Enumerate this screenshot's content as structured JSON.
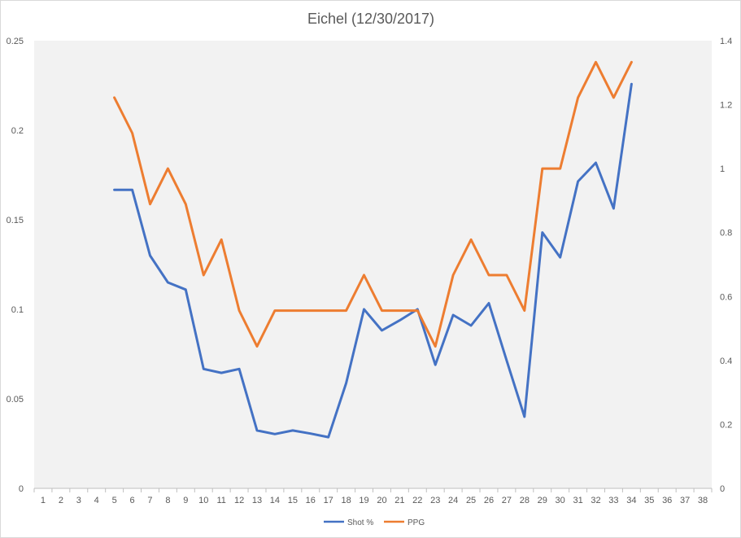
{
  "chart_data": {
    "type": "line",
    "title": "Eichel (12/30/2017)",
    "x": [
      1,
      2,
      3,
      4,
      5,
      6,
      7,
      8,
      9,
      10,
      11,
      12,
      13,
      14,
      15,
      16,
      17,
      18,
      19,
      20,
      21,
      22,
      23,
      24,
      25,
      26,
      27,
      28,
      29,
      30,
      31,
      32,
      33,
      34,
      35,
      36,
      37,
      38
    ],
    "xlim": [
      1,
      38
    ],
    "y_left": {
      "min": 0,
      "max": 0.25,
      "ticks": [
        "0",
        "0.05",
        "0.1",
        "0.15",
        "0.2",
        "0.25"
      ]
    },
    "y_right": {
      "min": 0,
      "max": 1.4,
      "ticks": [
        "0",
        "0.2",
        "0.4",
        "0.6",
        "0.8",
        "1",
        "1.2",
        "1.4"
      ]
    },
    "grid": false,
    "legend_position": "bottom",
    "series": [
      {
        "name": "Shot %",
        "axis": "left",
        "color": "#4472c4",
        "points": [
          [
            5,
            0.1667
          ],
          [
            6,
            0.1667
          ],
          [
            7,
            0.13
          ],
          [
            8,
            0.115
          ],
          [
            9,
            0.111
          ],
          [
            10,
            0.0667
          ],
          [
            11,
            0.0645
          ],
          [
            12,
            0.0667
          ],
          [
            13,
            0.0323
          ],
          [
            14,
            0.0303
          ],
          [
            15,
            0.0323
          ],
          [
            16,
            0.0306
          ],
          [
            17,
            0.0286
          ],
          [
            18,
            0.0588
          ],
          [
            19,
            0.1
          ],
          [
            20,
            0.0882
          ],
          [
            21,
            0.0938
          ],
          [
            22,
            0.1
          ],
          [
            23,
            0.069
          ],
          [
            24,
            0.0968
          ],
          [
            25,
            0.0909
          ],
          [
            26,
            0.1034
          ],
          [
            27,
            0.0714
          ],
          [
            28,
            0.04
          ],
          [
            29,
            0.1429
          ],
          [
            30,
            0.129
          ],
          [
            31,
            0.1714
          ],
          [
            32,
            0.1818
          ],
          [
            33,
            0.1563
          ],
          [
            34,
            0.2258
          ]
        ]
      },
      {
        "name": "PPG",
        "axis": "right",
        "color": "#ed7d31",
        "points": [
          [
            5,
            1.222
          ],
          [
            6,
            1.111
          ],
          [
            7,
            0.889
          ],
          [
            8,
            1.0
          ],
          [
            9,
            0.889
          ],
          [
            10,
            0.667
          ],
          [
            11,
            0.778
          ],
          [
            12,
            0.556
          ],
          [
            13,
            0.444
          ],
          [
            14,
            0.556
          ],
          [
            15,
            0.556
          ],
          [
            16,
            0.556
          ],
          [
            17,
            0.556
          ],
          [
            18,
            0.556
          ],
          [
            19,
            0.667
          ],
          [
            20,
            0.556
          ],
          [
            21,
            0.556
          ],
          [
            22,
            0.556
          ],
          [
            23,
            0.444
          ],
          [
            24,
            0.667
          ],
          [
            25,
            0.778
          ],
          [
            26,
            0.667
          ],
          [
            27,
            0.667
          ],
          [
            28,
            0.556
          ],
          [
            29,
            1.0
          ],
          [
            30,
            1.0
          ],
          [
            31,
            1.222
          ],
          [
            32,
            1.333
          ],
          [
            33,
            1.222
          ],
          [
            34,
            1.333
          ]
        ]
      }
    ],
    "colors": {
      "plot_background": "#f2f2f2",
      "axis_line": "#bfbfbf",
      "text": "#595959"
    }
  }
}
